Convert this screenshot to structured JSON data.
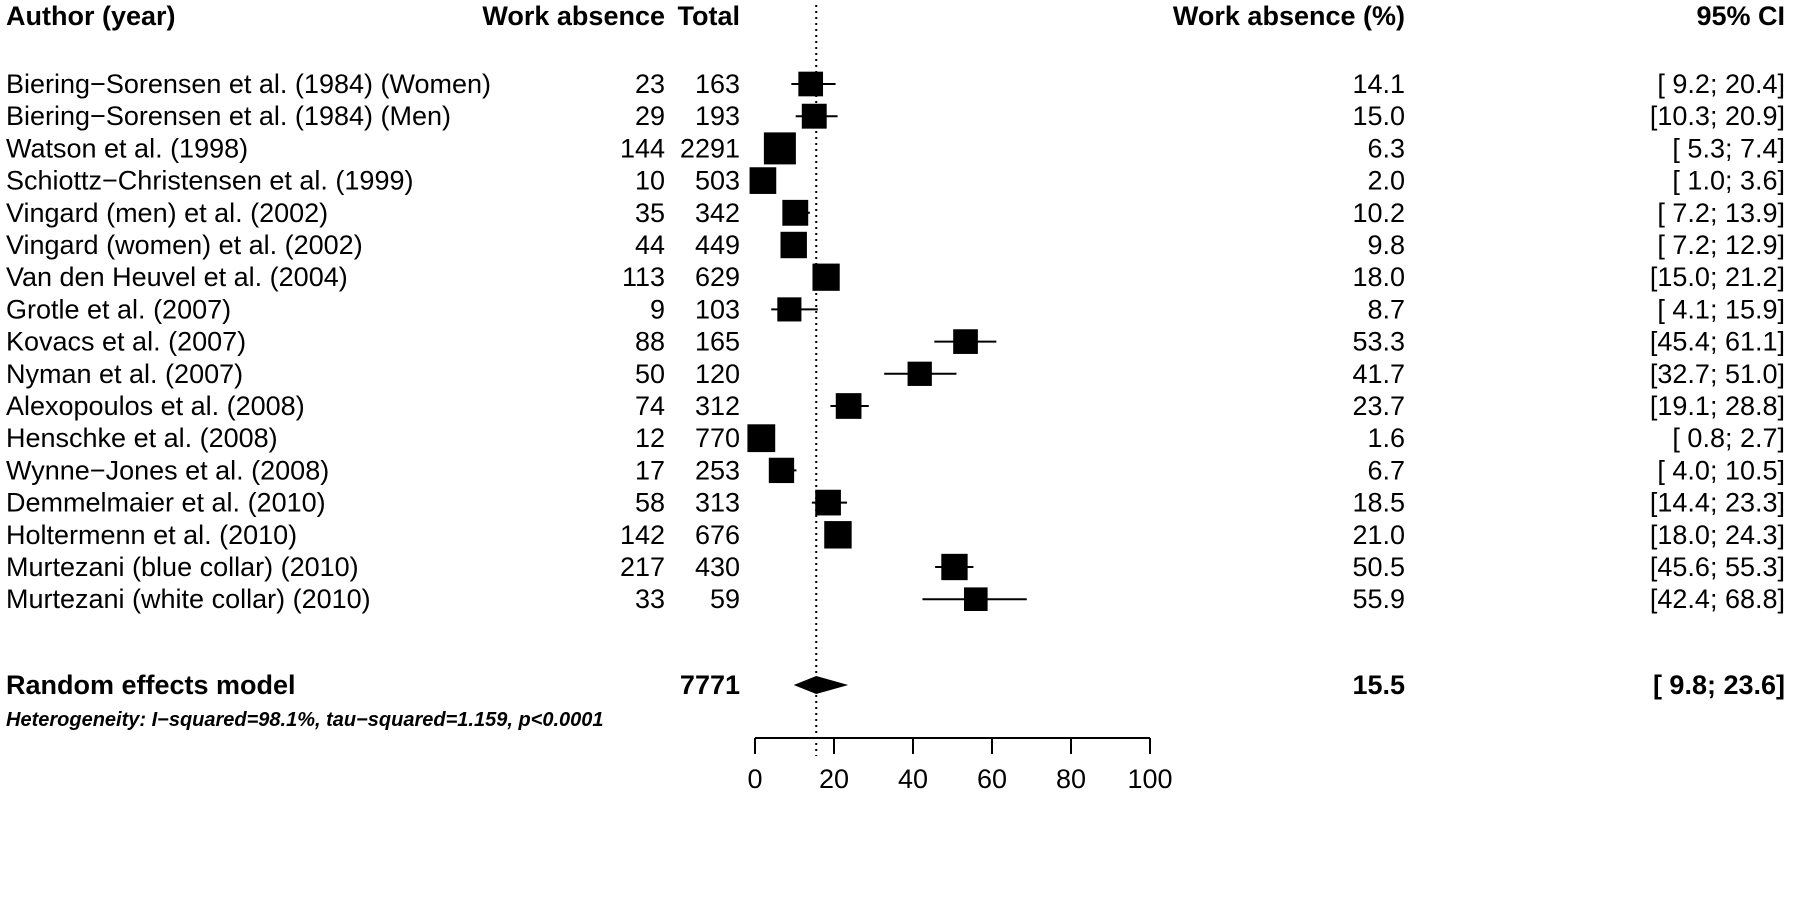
{
  "headers": {
    "author": "Author (year)",
    "events": "Work absence",
    "total": "Total",
    "percent": "Work absence (%)",
    "ci": "95% CI"
  },
  "chart_data": {
    "type": "forest",
    "xlim": [
      0,
      100
    ],
    "ticks": [
      0,
      20,
      40,
      60,
      80,
      100
    ],
    "reference_line": 15.5,
    "studies": [
      {
        "author": "Biering−Sorensen et al. (1984) (Women)",
        "events": 23,
        "total": 163,
        "est": 14.1,
        "lo": 9.2,
        "hi": 20.4,
        "pct": "14.1",
        "ci": "[ 9.2; 20.4]"
      },
      {
        "author": "Biering−Sorensen et al. (1984) (Men)",
        "events": 29,
        "total": 193,
        "est": 15.0,
        "lo": 10.3,
        "hi": 20.9,
        "pct": "15.0",
        "ci": "[10.3; 20.9]"
      },
      {
        "author": "Watson et al. (1998)",
        "events": 144,
        "total": 2291,
        "est": 6.3,
        "lo": 5.3,
        "hi": 7.4,
        "pct": "6.3",
        "ci": "[ 5.3;  7.4]"
      },
      {
        "author": "Schiottz−Christensen et al. (1999)",
        "events": 10,
        "total": 503,
        "est": 2.0,
        "lo": 1.0,
        "hi": 3.6,
        "pct": "2.0",
        "ci": "[ 1.0;  3.6]"
      },
      {
        "author": "Vingard (men) et al. (2002)",
        "events": 35,
        "total": 342,
        "est": 10.2,
        "lo": 7.2,
        "hi": 13.9,
        "pct": "10.2",
        "ci": "[ 7.2; 13.9]"
      },
      {
        "author": "Vingard (women) et al. (2002)",
        "events": 44,
        "total": 449,
        "est": 9.8,
        "lo": 7.2,
        "hi": 12.9,
        "pct": "9.8",
        "ci": "[ 7.2; 12.9]"
      },
      {
        "author": "Van den Heuvel et al. (2004)",
        "events": 113,
        "total": 629,
        "est": 18.0,
        "lo": 15.0,
        "hi": 21.2,
        "pct": "18.0",
        "ci": "[15.0; 21.2]"
      },
      {
        "author": "Grotle et al. (2007)",
        "events": 9,
        "total": 103,
        "est": 8.7,
        "lo": 4.1,
        "hi": 15.9,
        "pct": "8.7",
        "ci": "[ 4.1; 15.9]"
      },
      {
        "author": "Kovacs et al. (2007)",
        "events": 88,
        "total": 165,
        "est": 53.3,
        "lo": 45.4,
        "hi": 61.1,
        "pct": "53.3",
        "ci": "[45.4; 61.1]"
      },
      {
        "author": "Nyman et al. (2007)",
        "events": 50,
        "total": 120,
        "est": 41.7,
        "lo": 32.7,
        "hi": 51.0,
        "pct": "41.7",
        "ci": "[32.7; 51.0]"
      },
      {
        "author": "Alexopoulos  et al. (2008)",
        "events": 74,
        "total": 312,
        "est": 23.7,
        "lo": 19.1,
        "hi": 28.8,
        "pct": "23.7",
        "ci": "[19.1; 28.8]"
      },
      {
        "author": "Henschke et al. (2008)",
        "events": 12,
        "total": 770,
        "est": 1.6,
        "lo": 0.8,
        "hi": 2.7,
        "pct": "1.6",
        "ci": "[ 0.8;  2.7]"
      },
      {
        "author": "Wynne−Jones et al. (2008)",
        "events": 17,
        "total": 253,
        "est": 6.7,
        "lo": 4.0,
        "hi": 10.5,
        "pct": "6.7",
        "ci": "[ 4.0; 10.5]"
      },
      {
        "author": "Demmelmaier et al. (2010)",
        "events": 58,
        "total": 313,
        "est": 18.5,
        "lo": 14.4,
        "hi": 23.3,
        "pct": "18.5",
        "ci": "[14.4; 23.3]"
      },
      {
        "author": "Holtermenn et al. (2010)",
        "events": 142,
        "total": 676,
        "est": 21.0,
        "lo": 18.0,
        "hi": 24.3,
        "pct": "21.0",
        "ci": "[18.0; 24.3]"
      },
      {
        "author": "Murtezani (blue collar) (2010)",
        "events": 217,
        "total": 430,
        "est": 50.5,
        "lo": 45.6,
        "hi": 55.3,
        "pct": "50.5",
        "ci": "[45.6; 55.3]"
      },
      {
        "author": "Murtezani (white collar) (2010)",
        "events": 33,
        "total": 59,
        "est": 55.9,
        "lo": 42.4,
        "hi": 68.8,
        "pct": "55.9",
        "ci": "[42.4; 68.8]"
      }
    ],
    "pooled": {
      "label": "Random effects model",
      "total": 7771,
      "est": 15.5,
      "lo": 9.8,
      "hi": 23.6,
      "pct": "15.5",
      "ci": "[ 9.8; 23.6]"
    },
    "heterogeneity": "Heterogeneity: I−squared=98.1%, tau−squared=1.159, p<0.0001"
  }
}
